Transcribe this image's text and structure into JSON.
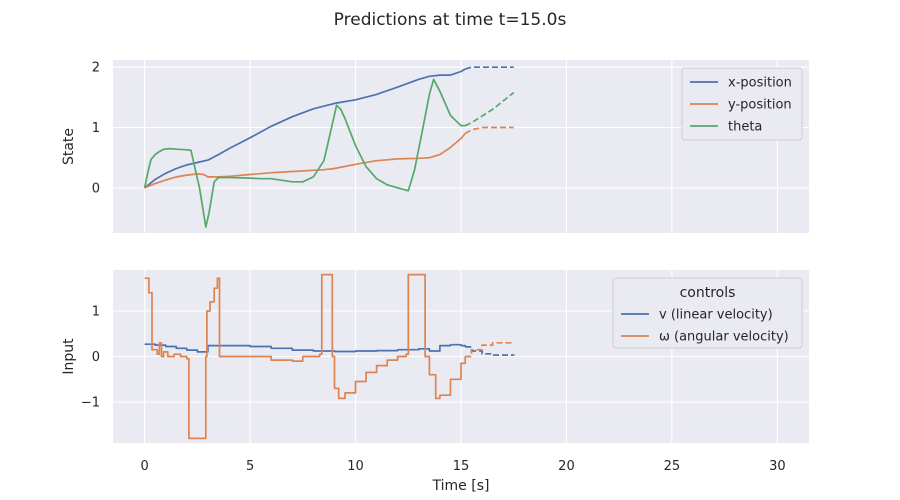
{
  "figure": {
    "title": "Predictions at time t=15.0s",
    "x_label": "Time [s]",
    "x_ticks": [
      0,
      5,
      10,
      15,
      20,
      25,
      30
    ],
    "x_range": [
      -1.5,
      31.5
    ]
  },
  "chart_data": [
    {
      "type": "line",
      "panel": "state",
      "ylabel": "State",
      "ylim": [
        -0.75,
        2.12
      ],
      "y_ticks": [
        0,
        1,
        2
      ],
      "grid": true,
      "legend_position": "top-right",
      "legend_title": "",
      "prediction_start": 15.2,
      "series": [
        {
          "name": "x-position",
          "color": "#4c72b0",
          "points": [
            [
              0,
              0
            ],
            [
              0.5,
              0.14
            ],
            [
              1,
              0.24
            ],
            [
              1.5,
              0.32
            ],
            [
              2,
              0.38
            ],
            [
              2.5,
              0.42
            ],
            [
              3,
              0.46
            ],
            [
              3.5,
              0.55
            ],
            [
              4,
              0.65
            ],
            [
              5,
              0.83
            ],
            [
              6,
              1.02
            ],
            [
              7,
              1.18
            ],
            [
              8,
              1.31
            ],
            [
              9,
              1.4
            ],
            [
              10,
              1.46
            ],
            [
              11,
              1.55
            ],
            [
              12,
              1.67
            ],
            [
              13,
              1.8
            ],
            [
              13.5,
              1.85
            ],
            [
              14,
              1.87
            ],
            [
              14.5,
              1.87
            ],
            [
              15,
              1.93
            ],
            [
              15.2,
              1.97
            ],
            [
              15.5,
              2
            ],
            [
              16.5,
              2
            ],
            [
              17.5,
              2
            ]
          ]
        },
        {
          "name": "y-position",
          "color": "#dd8452",
          "points": [
            [
              0,
              0
            ],
            [
              0.5,
              0.07
            ],
            [
              1,
              0.13
            ],
            [
              1.5,
              0.18
            ],
            [
              2,
              0.21
            ],
            [
              2.5,
              0.23
            ],
            [
              2.8,
              0.22
            ],
            [
              3,
              0.18
            ],
            [
              3.5,
              0.18
            ],
            [
              4,
              0.19
            ],
            [
              5,
              0.22
            ],
            [
              6,
              0.25
            ],
            [
              7,
              0.27
            ],
            [
              8,
              0.29
            ],
            [
              8.5,
              0.3
            ],
            [
              9,
              0.32
            ],
            [
              10,
              0.39
            ],
            [
              11,
              0.45
            ],
            [
              12,
              0.48
            ],
            [
              13,
              0.49
            ],
            [
              13.5,
              0.5
            ],
            [
              14,
              0.55
            ],
            [
              14.5,
              0.67
            ],
            [
              15,
              0.82
            ],
            [
              15.2,
              0.9
            ],
            [
              15.5,
              0.96
            ],
            [
              16,
              1
            ],
            [
              17.5,
              1
            ]
          ]
        },
        {
          "name": "theta",
          "color": "#55a868",
          "points": [
            [
              0,
              0
            ],
            [
              0.15,
              0.25
            ],
            [
              0.3,
              0.47
            ],
            [
              0.5,
              0.55
            ],
            [
              0.7,
              0.6
            ],
            [
              0.9,
              0.64
            ],
            [
              1.2,
              0.65
            ],
            [
              1.5,
              0.64
            ],
            [
              2,
              0.63
            ],
            [
              2.2,
              0.62
            ],
            [
              2.4,
              0.3
            ],
            [
              2.6,
              0
            ],
            [
              2.9,
              -0.65
            ],
            [
              3.05,
              -0.42
            ],
            [
              3.3,
              0.1
            ],
            [
              3.5,
              0.17
            ],
            [
              4,
              0.17
            ],
            [
              5,
              0.16
            ],
            [
              5.5,
              0.15
            ],
            [
              6,
              0.15
            ],
            [
              7,
              0.1
            ],
            [
              7.5,
              0.1
            ],
            [
              8,
              0.18
            ],
            [
              8.5,
              0.45
            ],
            [
              8.8,
              0.9
            ],
            [
              9.1,
              1.37
            ],
            [
              9.3,
              1.3
            ],
            [
              9.5,
              1.15
            ],
            [
              10,
              0.7
            ],
            [
              10.5,
              0.35
            ],
            [
              11,
              0.15
            ],
            [
              11.5,
              0.05
            ],
            [
              12,
              0
            ],
            [
              12.5,
              -0.05
            ],
            [
              12.8,
              0.3
            ],
            [
              13.2,
              1
            ],
            [
              13.5,
              1.55
            ],
            [
              13.7,
              1.8
            ],
            [
              14,
              1.6
            ],
            [
              14.5,
              1.2
            ],
            [
              15,
              1.03
            ],
            [
              15.2,
              1.03
            ],
            [
              15.5,
              1.08
            ],
            [
              16.5,
              1.3
            ],
            [
              17.5,
              1.58
            ]
          ]
        }
      ]
    },
    {
      "type": "line",
      "panel": "input",
      "ylabel": "Input",
      "ylim": [
        -1.9,
        1.9
      ],
      "y_ticks": [
        -1,
        0,
        1
      ],
      "y_tick_labels": [
        "−1",
        "0",
        "1"
      ],
      "grid": true,
      "legend_position": "top-right",
      "legend_title": "controls",
      "prediction_start": 15.2,
      "series": [
        {
          "name": "v (linear velocity)",
          "color": "#4c72b0",
          "step": true,
          "points": [
            [
              0,
              0.27
            ],
            [
              0.5,
              0.25
            ],
            [
              1,
              0.22
            ],
            [
              1.5,
              0.18
            ],
            [
              2,
              0.14
            ],
            [
              2.5,
              0.1
            ],
            [
              3,
              0.24
            ],
            [
              4,
              0.24
            ],
            [
              5,
              0.22
            ],
            [
              6,
              0.18
            ],
            [
              7,
              0.14
            ],
            [
              8,
              0.12
            ],
            [
              9,
              0.11
            ],
            [
              10,
              0.12
            ],
            [
              11,
              0.13
            ],
            [
              12,
              0.15
            ],
            [
              13,
              0.17
            ],
            [
              13.5,
              0.12
            ],
            [
              14,
              0.24
            ],
            [
              14.5,
              0.26
            ],
            [
              15,
              0.24
            ],
            [
              15.2,
              0.21
            ],
            [
              15.5,
              0.12
            ],
            [
              16,
              0.06
            ],
            [
              16.5,
              0.03
            ],
            [
              17.5,
              0.02
            ]
          ]
        },
        {
          "name": "ω (angular velocity)",
          "color": "#dd8452",
          "step": true,
          "points": [
            [
              0,
              1.72
            ],
            [
              0.2,
              1.4
            ],
            [
              0.35,
              0.15
            ],
            [
              0.5,
              0.15
            ],
            [
              0.6,
              0.05
            ],
            [
              0.7,
              0.3
            ],
            [
              0.8,
              0.0
            ],
            [
              0.9,
              0.1
            ],
            [
              1.1,
              0.0
            ],
            [
              1.4,
              0.05
            ],
            [
              1.7,
              0.0
            ],
            [
              2,
              -0.05
            ],
            [
              2.1,
              -1.8
            ],
            [
              2.9,
              0.0
            ],
            [
              2.95,
              1.0
            ],
            [
              3.1,
              1.2
            ],
            [
              3.3,
              1.5
            ],
            [
              3.45,
              1.72
            ],
            [
              3.55,
              0.0
            ],
            [
              4,
              0.0
            ],
            [
              5,
              0.0
            ],
            [
              6,
              -0.08
            ],
            [
              7,
              -0.1
            ],
            [
              7.5,
              0.0
            ],
            [
              8,
              0.0
            ],
            [
              8.3,
              0.05
            ],
            [
              8.4,
              1.8
            ],
            [
              8.8,
              1.8
            ],
            [
              8.9,
              0.0
            ],
            [
              9,
              -0.7
            ],
            [
              9.2,
              -0.92
            ],
            [
              9.5,
              -0.8
            ],
            [
              10,
              -0.55
            ],
            [
              10.5,
              -0.35
            ],
            [
              11,
              -0.2
            ],
            [
              11.5,
              -0.08
            ],
            [
              12,
              0.0
            ],
            [
              12.4,
              0.05
            ],
            [
              12.5,
              1.8
            ],
            [
              13.2,
              1.8
            ],
            [
              13.3,
              0.0
            ],
            [
              13.5,
              -0.4
            ],
            [
              13.8,
              -0.92
            ],
            [
              14,
              -0.85
            ],
            [
              14.5,
              -0.5
            ],
            [
              15,
              -0.15
            ],
            [
              15.2,
              0.0
            ],
            [
              15.5,
              0.15
            ],
            [
              16,
              0.25
            ],
            [
              16.5,
              0.3
            ],
            [
              17.5,
              0.32
            ]
          ]
        }
      ]
    }
  ]
}
